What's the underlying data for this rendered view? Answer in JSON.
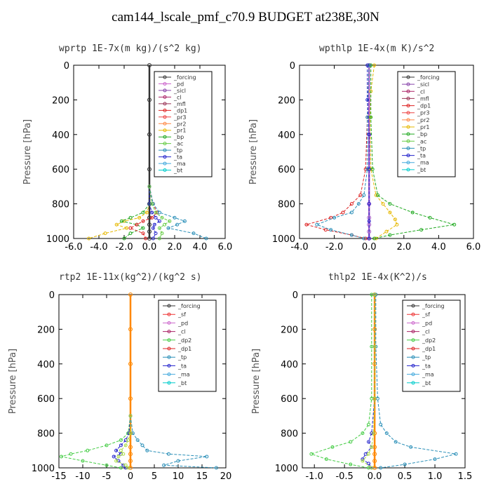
{
  "title": "cam144_lscale_pmf_c70.9  BUDGET at238E,30N",
  "chart_data": [
    {
      "type": "line",
      "title": "wprtp  1E-7x(m kg)/(s^2 kg)",
      "ylabel": "Pressure [hPa]",
      "xlim": [
        -6,
        6
      ],
      "ylim": [
        1000,
        0
      ],
      "xticks": [
        "-6.0",
        "-4.0",
        "-2.0",
        "0.0",
        "2.0",
        "4.0",
        "6.0"
      ],
      "yticks": [
        "0",
        "200",
        "400",
        "600",
        "800",
        "1000"
      ],
      "legend": [
        "_forcing",
        "_pd",
        "_sicl",
        "_cl",
        "_mfl",
        "_dp1",
        "_pr3",
        "_pr2",
        "_pr1",
        "_bp",
        "_ac",
        "_tp",
        "_ta",
        "_ma",
        "_bt"
      ],
      "series": [
        {
          "name": "_forcing",
          "color": "#333333",
          "x": [
            0,
            0,
            0,
            0,
            0,
            0,
            0,
            0,
            0
          ],
          "y": [
            0,
            200,
            400,
            600,
            800,
            880,
            920,
            960,
            1000
          ]
        },
        {
          "name": "_pr1",
          "color": "#e6b800",
          "x": [
            0,
            0,
            -0.2,
            -0.8,
            -2.0,
            -2.6,
            -1.8,
            -3.5,
            -4.8
          ],
          "y": [
            700,
            800,
            850,
            880,
            900,
            920,
            940,
            970,
            1000
          ]
        },
        {
          "name": "_bp",
          "color": "#22aa22",
          "x": [
            0,
            0,
            -0.5,
            -1.5,
            -2.2,
            -1.0,
            -0.5,
            -1.5,
            -2.0
          ],
          "y": [
            700,
            800,
            850,
            880,
            900,
            920,
            940,
            970,
            1000
          ]
        },
        {
          "name": "_dp1",
          "color": "#dd2222",
          "x": [
            0,
            0.3,
            0.6,
            0.2,
            -0.5,
            -1.0,
            -1.5,
            -0.5,
            -0.3
          ],
          "y": [
            700,
            800,
            850,
            880,
            900,
            920,
            940,
            970,
            1000
          ]
        },
        {
          "name": "_tp",
          "color": "#2a8fb8",
          "x": [
            0,
            0.3,
            0.8,
            2.0,
            2.8,
            2.2,
            1.5,
            3.5,
            4.5
          ],
          "y": [
            700,
            800,
            850,
            880,
            900,
            920,
            940,
            970,
            1000
          ]
        },
        {
          "name": "_ta",
          "color": "#2222cc",
          "x": [
            0,
            0,
            0.2,
            0.5,
            0.8,
            0.4,
            0.3,
            0.5,
            0.3
          ],
          "y": [
            700,
            800,
            850,
            880,
            900,
            920,
            940,
            970,
            1000
          ]
        },
        {
          "name": "_ac",
          "color": "#66cc44",
          "x": [
            0,
            0.2,
            0.5,
            1.0,
            1.6,
            1.2,
            0.8,
            1.0,
            0.8
          ],
          "y": [
            700,
            800,
            850,
            880,
            900,
            920,
            940,
            970,
            1000
          ]
        }
      ]
    },
    {
      "type": "line",
      "title": "wpthlp  1E-4x(m K)/s^2",
      "ylabel": "Pressure [hPa]",
      "xlim": [
        -4,
        6
      ],
      "ylim": [
        1000,
        0
      ],
      "xticks": [
        "-4.0",
        "-2.0",
        "0.0",
        "2.0",
        "4.0",
        "6.0"
      ],
      "yticks": [
        "0",
        "200",
        "400",
        "600",
        "800",
        "1000"
      ],
      "legend": [
        "_forcing",
        "_sicl",
        "_cl",
        "_mfl",
        "_dp1",
        "_pr3",
        "_pr2",
        "_pr1",
        "_bp",
        "_ac",
        "_tp",
        "_ta",
        "_ma",
        "_bt"
      ],
      "series": [
        {
          "name": "_forcing",
          "color": "#aa66cc",
          "x": [
            0,
            0,
            0,
            0,
            0,
            0,
            0,
            0,
            0
          ],
          "y": [
            0,
            200,
            400,
            600,
            800,
            880,
            920,
            960,
            1000
          ]
        },
        {
          "name": "_pr1",
          "color": "#e6b800",
          "x": [
            0.3,
            0.1,
            0.05,
            0.1,
            0.4,
            0.8,
            1.2,
            1.5,
            1.6,
            1.0,
            0.4
          ],
          "y": [
            0,
            150,
            300,
            600,
            750,
            800,
            850,
            890,
            920,
            960,
            1000
          ]
        },
        {
          "name": "_bp",
          "color": "#22aa22",
          "x": [
            0.1,
            0.1,
            0.2,
            0.5,
            1.2,
            2.5,
            3.5,
            4.9,
            3.0,
            1.2,
            0.3
          ],
          "y": [
            0,
            300,
            600,
            750,
            800,
            850,
            880,
            920,
            950,
            980,
            1000
          ]
        },
        {
          "name": "_dp1",
          "color": "#dd2222",
          "x": [
            0,
            -0.1,
            -0.2,
            -0.5,
            -1.0,
            -1.5,
            -2.2,
            -3.6,
            -2.5,
            -1.0,
            -0.2
          ],
          "y": [
            0,
            300,
            600,
            750,
            800,
            850,
            880,
            920,
            950,
            980,
            1000
          ]
        },
        {
          "name": "_tp",
          "color": "#2a8fb8",
          "x": [
            0,
            -0.1,
            -0.1,
            -0.3,
            -0.6,
            -1.0,
            -2.0,
            -3.0,
            -2.2,
            -1.0,
            -0.3
          ],
          "y": [
            0,
            300,
            600,
            750,
            800,
            850,
            880,
            920,
            950,
            980,
            1000
          ]
        },
        {
          "name": "_ta",
          "color": "#2222cc",
          "x": [
            -0.1,
            -0.1,
            0,
            0,
            0,
            0,
            0
          ],
          "y": [
            0,
            200,
            400,
            600,
            800,
            900,
            1000
          ]
        }
      ]
    },
    {
      "type": "line",
      "title": "rtp2  1E-11x(kg^2)/(kg^2 s)",
      "ylabel": "Pressure [hPa]",
      "xlim": [
        -15,
        20
      ],
      "ylim": [
        1000,
        0
      ],
      "xticks": [
        "-15",
        "-10",
        "-5",
        "0",
        "5",
        "10",
        "15",
        "20"
      ],
      "yticks": [
        "0",
        "200",
        "400",
        "600",
        "800",
        "1000"
      ],
      "legend": [
        "_forcing",
        "_sf",
        "_pd",
        "_cl",
        "_dp2",
        "_dp1",
        "_tp",
        "_ta",
        "_ma",
        "_bt"
      ],
      "series": [
        {
          "name": "_forcing",
          "color": "#ff8800",
          "x": [
            0,
            0,
            0,
            0,
            0,
            0,
            0,
            0,
            0
          ],
          "y": [
            0,
            200,
            400,
            600,
            800,
            880,
            920,
            960,
            1000
          ]
        },
        {
          "name": "_dp2",
          "color": "#44cc44",
          "x": [
            0,
            -0.5,
            -2.0,
            -5.0,
            -9.0,
            -12.5,
            -14.5,
            -10.0,
            -5.0,
            -2.0
          ],
          "y": [
            700,
            800,
            840,
            870,
            900,
            920,
            935,
            960,
            985,
            1000
          ]
        },
        {
          "name": "_tp",
          "color": "#2a8fb8",
          "x": [
            0,
            0.5,
            1.5,
            2.5,
            3.5,
            8.0,
            16.0,
            10.0,
            7.0,
            18.0
          ],
          "y": [
            700,
            800,
            840,
            870,
            900,
            920,
            935,
            960,
            985,
            1000
          ]
        },
        {
          "name": "_ta",
          "color": "#2222cc",
          "x": [
            0,
            -0.3,
            -1.0,
            -2.0,
            -3.0,
            -2.0,
            -3.5,
            -2.5,
            -1.5,
            -1.0
          ],
          "y": [
            700,
            800,
            840,
            870,
            900,
            920,
            935,
            960,
            985,
            1000
          ]
        },
        {
          "name": "_dp1",
          "color": "#aadd44",
          "x": [
            0,
            0,
            -0.5,
            -1.0,
            -2.0,
            -1.5,
            -2.5,
            -3.0,
            -1.0,
            -0.5
          ],
          "y": [
            700,
            800,
            840,
            870,
            900,
            920,
            935,
            960,
            985,
            1000
          ]
        }
      ]
    },
    {
      "type": "line",
      "title": "thlp2  1E-4x(K^2)/s",
      "ylabel": "Pressure [hPa]",
      "xlim": [
        -1.2,
        1.5
      ],
      "ylim": [
        1000,
        0
      ],
      "xticks": [
        "-1.0",
        "-0.5",
        "0.0",
        "0.5",
        "1.0",
        "1.5"
      ],
      "yticks": [
        "0",
        "200",
        "400",
        "600",
        "800",
        "1000"
      ],
      "legend": [
        "_forcing",
        "_sf",
        "_pd",
        "_cl",
        "_dp2",
        "_dp1",
        "_tp",
        "_ta",
        "_ma",
        "_bt"
      ],
      "series": [
        {
          "name": "_forcing",
          "color": "#ff8800",
          "x": [
            0,
            0,
            0,
            0,
            0,
            0,
            0,
            0,
            0
          ],
          "y": [
            0,
            200,
            400,
            600,
            800,
            880,
            920,
            960,
            1000
          ]
        },
        {
          "name": "_dp2",
          "color": "#44cc44",
          "x": [
            -0.05,
            -0.05,
            -0.05,
            -0.1,
            -0.2,
            -0.4,
            -0.7,
            -1.05,
            -0.8,
            -0.4,
            -0.1
          ],
          "y": [
            0,
            300,
            600,
            750,
            800,
            850,
            880,
            920,
            950,
            980,
            1000
          ]
        },
        {
          "name": "_tp",
          "color": "#2a8fb8",
          "x": [
            0.02,
            0.02,
            0.05,
            0.1,
            0.2,
            0.35,
            0.6,
            1.35,
            1.0,
            0.5,
            0.1
          ],
          "y": [
            0,
            300,
            600,
            750,
            800,
            850,
            880,
            920,
            950,
            980,
            1000
          ]
        },
        {
          "name": "_ta",
          "color": "#2222cc",
          "x": [
            0,
            0,
            0,
            -0.05,
            -0.1,
            -0.05,
            -0.15,
            -0.2,
            -0.1,
            -0.05
          ],
          "y": [
            0,
            300,
            600,
            800,
            850,
            880,
            920,
            950,
            975,
            1000
          ]
        },
        {
          "name": "_dp1",
          "color": "#aadd44",
          "x": [
            0,
            0,
            0,
            -0.02,
            -0.05,
            -0.1,
            -0.2,
            -0.05
          ],
          "y": [
            0,
            300,
            600,
            800,
            880,
            920,
            960,
            1000
          ]
        }
      ]
    }
  ],
  "legend_colors": {
    "_forcing": "#333333",
    "_pd": "#cc66cc",
    "_sicl": "#8844aa",
    "_cl": "#aa2266",
    "_mfl": "#993355",
    "_dp1": "#dd2222",
    "_pr3": "#ee4444",
    "_pr2": "#ff8844",
    "_pr1": "#e6b800",
    "_bp": "#22aa22",
    "_ac": "#66cc44",
    "_tp": "#2a8fb8",
    "_ta": "#2222cc",
    "_ma": "#44aadd",
    "_bt": "#00cccc",
    "_sf": "#ee3333",
    "_dp2": "#44cc44"
  }
}
